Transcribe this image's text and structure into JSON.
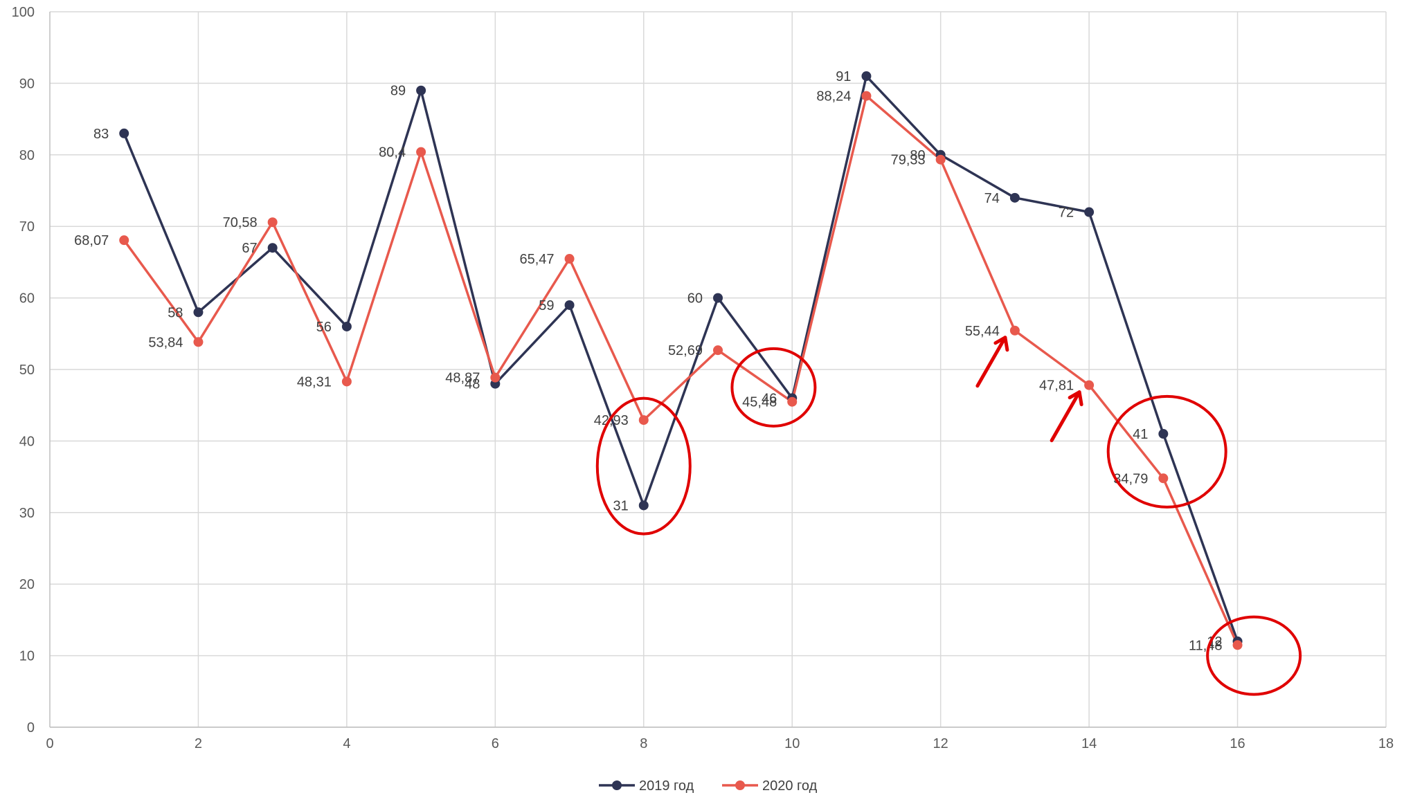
{
  "chart_data": {
    "type": "scatter",
    "xlim": [
      0,
      18
    ],
    "ylim": [
      0,
      100
    ],
    "x_ticks": [
      0,
      2,
      4,
      6,
      8,
      10,
      12,
      14,
      16,
      18
    ],
    "y_ticks": [
      0,
      10,
      20,
      30,
      40,
      50,
      60,
      70,
      80,
      90,
      100
    ],
    "grid": true,
    "legend_position": "bottom",
    "x": [
      1,
      2,
      3,
      4,
      5,
      6,
      7,
      8,
      9,
      10,
      11,
      12,
      13,
      14,
      15,
      16
    ],
    "series": [
      {
        "name": "2019 год",
        "color": "#2e3454",
        "values": [
          83,
          58,
          67,
          56,
          89,
          48,
          59,
          31,
          60,
          46,
          91,
          80,
          74,
          72,
          41,
          12
        ],
        "labels": [
          "83",
          "58",
          "67",
          "56",
          "89",
          "48",
          "59",
          "31",
          "60",
          "46",
          "91",
          "80",
          "74",
          "72",
          "41",
          "12"
        ]
      },
      {
        "name": "2020 год",
        "color": "#e8594d",
        "values": [
          68.07,
          53.84,
          70.58,
          48.31,
          80.4,
          48.87,
          65.47,
          42.93,
          52.69,
          45.48,
          88.24,
          79.33,
          55.44,
          47.81,
          34.79,
          11.48
        ],
        "labels": [
          "68,07",
          "53,84",
          "70,58",
          "48,31",
          "80,4",
          "48,87",
          "65,47",
          "42,93",
          "52,69",
          "45,48",
          "88,24",
          "79,33",
          "55,44",
          "47,81",
          "34,79",
          "11,48"
        ]
      }
    ],
    "annotations": {
      "color": "#e00000",
      "circles_around_x": [
        8,
        10,
        15,
        16
      ],
      "arrows_toward_x": [
        13,
        14
      ]
    }
  }
}
